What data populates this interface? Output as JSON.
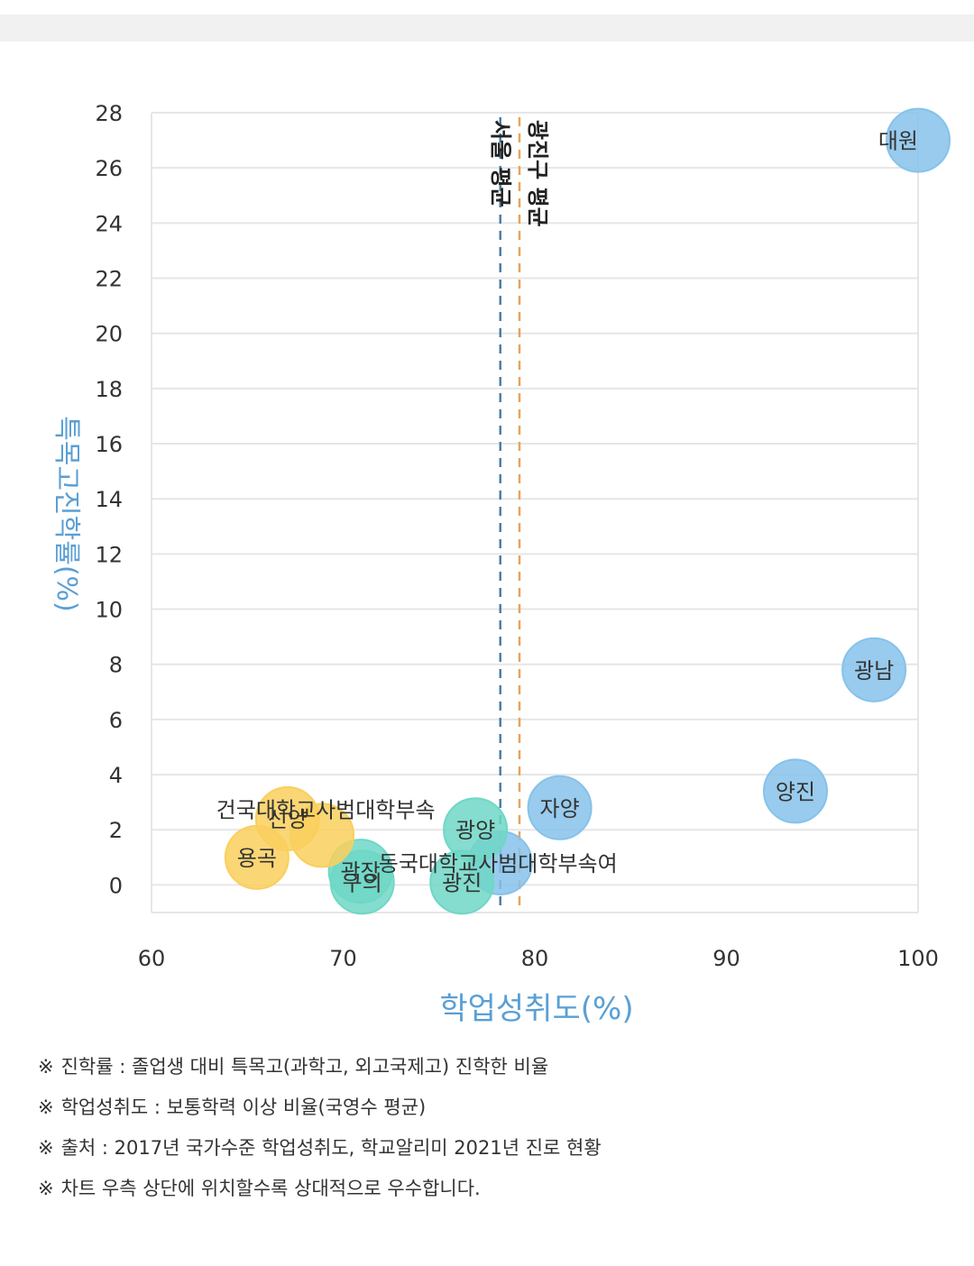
{
  "chart_data": {
    "type": "scatter",
    "xlabel": "학업성취도(%)",
    "ylabel": "특목고진학률(%)",
    "xlim": [
      60,
      100
    ],
    "ylim": [
      -1,
      28
    ],
    "x_ticks": [
      60,
      70,
      80,
      90,
      100
    ],
    "y_ticks": [
      0,
      2,
      4,
      6,
      8,
      10,
      12,
      14,
      16,
      18,
      20,
      22,
      24,
      26,
      28
    ],
    "grid": "horizontal",
    "reference_lines": [
      {
        "label": "서울 평균",
        "x": 78.2,
        "color": "#4a7fa6"
      },
      {
        "label": "광진구 평균",
        "x": 79.2,
        "color": "#e8a35c"
      }
    ],
    "points": [
      {
        "label": "대원",
        "x": 100.0,
        "y": 27.0,
        "color": "#86c2ea"
      },
      {
        "label": "광남",
        "x": 97.7,
        "y": 7.8,
        "color": "#86c2ea"
      },
      {
        "label": "양진",
        "x": 93.6,
        "y": 3.4,
        "color": "#86c2ea"
      },
      {
        "label": "자양",
        "x": 81.3,
        "y": 2.8,
        "color": "#86c2ea"
      },
      {
        "label": "동국대학교사범대학부속여",
        "x": 78.2,
        "y": 0.8,
        "color": "#86c2ea"
      },
      {
        "label": "광양",
        "x": 76.9,
        "y": 2.0,
        "color": "#6fd7c6"
      },
      {
        "label": "광진",
        "x": 76.2,
        "y": 0.1,
        "color": "#6fd7c6"
      },
      {
        "label": "광장",
        "x": 70.9,
        "y": 0.5,
        "color": "#6fd7c6"
      },
      {
        "label": "구의",
        "x": 71.0,
        "y": 0.1,
        "color": "#6fd7c6"
      },
      {
        "label": "신양",
        "x": 67.1,
        "y": 2.4,
        "color": "#f9cf5d"
      },
      {
        "label": "건국대학교사범대학부속",
        "x": 68.9,
        "y": 1.8,
        "color": "#f9cf5d"
      },
      {
        "label": "용곡",
        "x": 65.5,
        "y": 1.0,
        "color": "#f9cf5d"
      }
    ]
  },
  "notes": [
    {
      "mark": "※",
      "text": "진학률 : 졸업생 대비 특목고(과학고, 외고국제고) 진학한 비율"
    },
    {
      "mark": "※",
      "text": "학업성취도 : 보통학력 이상 비율(국영수 평균)"
    },
    {
      "mark": "※",
      "text": "출처 : 2017년 국가수준 학업성취도, 학교알리미 2021년 진로 현황"
    },
    {
      "mark": "※",
      "text": "차트 우측 상단에 위치할수록 상대적으로 우수합니다."
    }
  ],
  "colors": {
    "axis_title": "#5a9fd4",
    "grid": "#e6e6e6",
    "tick_label": "#333333"
  }
}
